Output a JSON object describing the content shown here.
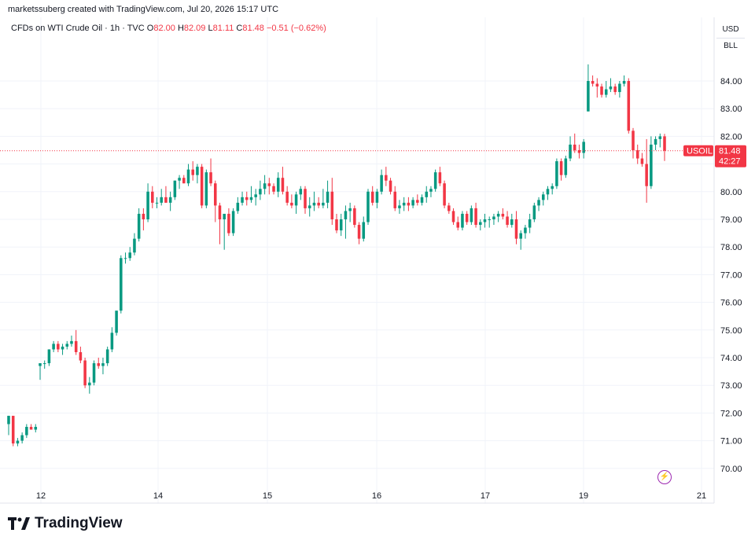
{
  "header": {
    "text": "marketssuberg created with TradingView.com, Jul 20, 2026 15:17 UTC"
  },
  "legend": {
    "symbol": "CFDs on WTI Crude Oil · 1h · TVC",
    "o_label": "O",
    "o_value": "82.00",
    "h_label": "H",
    "h_value": "82.09",
    "l_label": "L",
    "l_value": "81.11",
    "c_label": "C",
    "c_value": "81.48",
    "change": "−0.51 (−0.62%)"
  },
  "units": {
    "currency": "USD",
    "unit": "BLL"
  },
  "price_tag": {
    "symbol": "USOIL",
    "price": "81.48",
    "countdown": "42:27"
  },
  "footer": {
    "logo_text": "TradingView"
  },
  "icons": {
    "logo": "tradingview-logo-icon",
    "bolt": "lightning-icon"
  },
  "colors": {
    "up": "#089981",
    "down": "#f23645",
    "grid": "#f0f3fa",
    "axis": "#e0e3eb"
  },
  "chart_data": {
    "type": "candlestick",
    "interval": "1h",
    "y_ticks": [
      "70.00",
      "71.00",
      "72.00",
      "73.00",
      "74.00",
      "75.00",
      "76.00",
      "77.00",
      "78.00",
      "79.00",
      "80.00",
      "81.00",
      "82.00",
      "83.00",
      "84.00"
    ],
    "x_ticks": [
      "12",
      "14",
      "15",
      "16",
      "17",
      "19",
      "21"
    ],
    "ylim": [
      69.3,
      85.5
    ],
    "last_price": 81.48,
    "candles": [
      [
        71.6,
        71.9,
        71.2,
        71.9
      ],
      [
        71.9,
        71.9,
        70.8,
        70.9
      ],
      [
        70.9,
        71.1,
        70.8,
        71.0
      ],
      [
        71.0,
        71.3,
        70.9,
        71.2
      ],
      [
        71.2,
        71.6,
        71.1,
        71.5
      ],
      [
        71.5,
        71.6,
        71.4,
        71.4
      ],
      [
        71.4,
        71.6,
        71.3,
        71.5
      ],
      [
        73.7,
        73.8,
        73.2,
        73.8
      ],
      [
        73.8,
        73.9,
        73.6,
        73.8
      ],
      [
        73.8,
        74.3,
        73.7,
        74.3
      ],
      [
        74.3,
        74.6,
        74.2,
        74.5
      ],
      [
        74.5,
        74.6,
        74.2,
        74.3
      ],
      [
        74.3,
        74.5,
        74.1,
        74.4
      ],
      [
        74.4,
        74.6,
        74.3,
        74.5
      ],
      [
        74.5,
        74.8,
        74.4,
        74.6
      ],
      [
        74.6,
        75.0,
        74.1,
        74.2
      ],
      [
        74.2,
        74.4,
        73.8,
        73.9
      ],
      [
        73.9,
        74.0,
        72.9,
        73.0
      ],
      [
        73.0,
        73.3,
        72.7,
        73.1
      ],
      [
        73.1,
        73.9,
        73.0,
        73.8
      ],
      [
        73.8,
        74.0,
        73.6,
        73.7
      ],
      [
        73.7,
        74.0,
        73.4,
        73.8
      ],
      [
        73.8,
        74.4,
        73.7,
        74.3
      ],
      [
        74.3,
        75.1,
        74.2,
        74.9
      ],
      [
        74.9,
        75.7,
        74.8,
        75.7
      ],
      [
        75.7,
        77.7,
        75.6,
        77.6
      ],
      [
        77.6,
        77.8,
        77.4,
        77.6
      ],
      [
        77.6,
        78.0,
        77.5,
        77.8
      ],
      [
        77.8,
        78.5,
        77.7,
        78.3
      ],
      [
        78.3,
        79.4,
        78.2,
        79.2
      ],
      [
        79.2,
        79.4,
        78.6,
        79.0
      ],
      [
        79.0,
        80.3,
        78.9,
        80.0
      ],
      [
        80.0,
        80.2,
        79.4,
        79.6
      ],
      [
        79.6,
        79.8,
        79.4,
        79.6
      ],
      [
        79.6,
        80.1,
        79.5,
        79.8
      ],
      [
        79.8,
        80.2,
        79.6,
        79.6
      ],
      [
        79.6,
        80.0,
        79.3,
        79.8
      ],
      [
        79.8,
        80.4,
        79.7,
        80.4
      ],
      [
        80.4,
        80.6,
        80.1,
        80.5
      ],
      [
        80.5,
        80.6,
        80.3,
        80.3
      ],
      [
        80.3,
        81.0,
        80.2,
        80.8
      ],
      [
        80.8,
        81.1,
        80.4,
        80.6
      ],
      [
        80.6,
        81.0,
        80.3,
        80.9
      ],
      [
        80.9,
        81.0,
        79.4,
        79.5
      ],
      [
        79.5,
        80.8,
        79.4,
        80.7
      ],
      [
        80.7,
        81.2,
        80.2,
        80.3
      ],
      [
        80.3,
        80.4,
        78.9,
        79.5
      ],
      [
        79.5,
        79.6,
        78.1,
        79.0
      ],
      [
        79.0,
        79.1,
        77.9,
        79.2
      ],
      [
        79.2,
        79.4,
        78.4,
        78.5
      ],
      [
        78.5,
        79.4,
        78.4,
        79.3
      ],
      [
        79.3,
        79.8,
        79.2,
        79.6
      ],
      [
        79.6,
        80.0,
        79.5,
        79.8
      ],
      [
        79.8,
        80.0,
        79.5,
        79.7
      ],
      [
        79.7,
        80.2,
        79.6,
        79.8
      ],
      [
        79.8,
        80.1,
        79.5,
        79.9
      ],
      [
        79.9,
        80.4,
        79.7,
        80.1
      ],
      [
        80.1,
        80.6,
        79.9,
        80.3
      ],
      [
        80.3,
        80.5,
        79.9,
        80.2
      ],
      [
        80.2,
        80.3,
        79.9,
        80.0
      ],
      [
        80.0,
        80.7,
        79.8,
        80.5
      ],
      [
        80.5,
        80.9,
        79.9,
        80.0
      ],
      [
        80.0,
        80.2,
        79.5,
        79.6
      ],
      [
        79.6,
        79.9,
        79.4,
        79.5
      ],
      [
        79.5,
        80.0,
        79.2,
        79.9
      ],
      [
        79.9,
        80.2,
        79.7,
        80.1
      ],
      [
        80.1,
        80.2,
        79.2,
        79.4
      ],
      [
        79.4,
        79.8,
        79.1,
        79.5
      ],
      [
        79.5,
        80.0,
        79.3,
        79.6
      ],
      [
        79.6,
        79.8,
        79.4,
        79.5
      ],
      [
        79.5,
        80.1,
        79.4,
        79.6
      ],
      [
        79.6,
        80.4,
        79.4,
        80.0
      ],
      [
        80.0,
        80.5,
        78.8,
        79.0
      ],
      [
        79.0,
        79.2,
        78.5,
        78.6
      ],
      [
        78.6,
        79.2,
        78.4,
        79.0
      ],
      [
        79.0,
        79.5,
        78.3,
        79.3
      ],
      [
        79.3,
        79.6,
        78.9,
        79.4
      ],
      [
        79.4,
        79.5,
        78.7,
        78.8
      ],
      [
        78.8,
        78.9,
        78.1,
        78.3
      ],
      [
        78.3,
        79.1,
        78.2,
        78.9
      ],
      [
        78.9,
        80.1,
        78.8,
        80.0
      ],
      [
        80.0,
        80.2,
        79.5,
        79.6
      ],
      [
        79.6,
        80.1,
        79.4,
        80.0
      ],
      [
        80.0,
        80.8,
        79.9,
        80.6
      ],
      [
        80.6,
        80.9,
        80.2,
        80.4
      ],
      [
        80.4,
        80.5,
        79.9,
        80.0
      ],
      [
        80.0,
        80.2,
        79.3,
        79.4
      ],
      [
        79.4,
        79.7,
        79.2,
        79.5
      ],
      [
        79.5,
        79.8,
        79.3,
        79.6
      ],
      [
        79.6,
        79.8,
        79.3,
        79.5
      ],
      [
        79.5,
        79.8,
        79.4,
        79.7
      ],
      [
        79.7,
        79.9,
        79.5,
        79.6
      ],
      [
        79.6,
        79.9,
        79.5,
        79.8
      ],
      [
        79.8,
        80.2,
        79.6,
        80.0
      ],
      [
        80.0,
        80.2,
        79.8,
        80.1
      ],
      [
        80.1,
        80.8,
        80.0,
        80.7
      ],
      [
        80.7,
        80.9,
        80.2,
        80.3
      ],
      [
        80.3,
        80.4,
        79.4,
        79.5
      ],
      [
        79.5,
        79.6,
        79.2,
        79.3
      ],
      [
        79.3,
        79.4,
        78.8,
        78.9
      ],
      [
        78.9,
        79.1,
        78.6,
        78.7
      ],
      [
        78.7,
        79.3,
        78.6,
        79.2
      ],
      [
        79.2,
        79.3,
        78.8,
        78.9
      ],
      [
        78.9,
        79.5,
        78.8,
        79.4
      ],
      [
        79.4,
        79.6,
        78.7,
        78.8
      ],
      [
        78.8,
        79.0,
        78.6,
        78.9
      ],
      [
        78.9,
        79.2,
        78.7,
        79.0
      ],
      [
        79.0,
        79.1,
        78.7,
        79.0
      ],
      [
        79.0,
        79.2,
        78.8,
        79.1
      ],
      [
        79.1,
        79.3,
        78.9,
        79.2
      ],
      [
        79.2,
        79.4,
        79.0,
        79.1
      ],
      [
        79.1,
        79.3,
        78.7,
        78.8
      ],
      [
        78.8,
        79.2,
        78.7,
        79.0
      ],
      [
        79.0,
        79.3,
        78.1,
        78.3
      ],
      [
        78.3,
        78.6,
        77.9,
        78.5
      ],
      [
        78.5,
        78.8,
        78.3,
        78.7
      ],
      [
        78.7,
        79.2,
        78.5,
        79.0
      ],
      [
        79.0,
        79.6,
        78.9,
        79.5
      ],
      [
        79.5,
        79.8,
        79.3,
        79.7
      ],
      [
        79.7,
        80.0,
        79.5,
        79.9
      ],
      [
        79.9,
        80.2,
        79.7,
        80.1
      ],
      [
        80.1,
        80.3,
        79.9,
        80.2
      ],
      [
        80.2,
        81.2,
        80.1,
        81.1
      ],
      [
        81.1,
        81.2,
        80.4,
        80.6
      ],
      [
        80.6,
        81.3,
        80.5,
        81.2
      ],
      [
        81.2,
        82.0,
        81.1,
        81.7
      ],
      [
        81.7,
        82.1,
        81.4,
        81.5
      ],
      [
        81.5,
        81.7,
        81.2,
        81.4
      ],
      [
        81.4,
        81.9,
        81.2,
        81.8
      ],
      [
        82.9,
        84.6,
        82.9,
        84.0
      ],
      [
        84.0,
        84.2,
        83.8,
        83.9
      ],
      [
        83.9,
        84.1,
        83.4,
        83.8
      ],
      [
        83.8,
        83.9,
        83.4,
        83.5
      ],
      [
        83.5,
        84.0,
        83.4,
        83.7
      ],
      [
        83.7,
        84.1,
        83.6,
        83.8
      ],
      [
        83.8,
        83.9,
        83.5,
        83.6
      ],
      [
        83.6,
        84.0,
        83.4,
        83.9
      ],
      [
        83.9,
        84.2,
        83.8,
        84.0
      ],
      [
        84.0,
        84.1,
        82.1,
        82.2
      ],
      [
        82.2,
        82.3,
        81.2,
        81.5
      ],
      [
        81.5,
        81.7,
        81.0,
        81.2
      ],
      [
        81.2,
        81.4,
        80.9,
        81.0
      ],
      [
        81.0,
        81.9,
        79.6,
        80.2
      ],
      [
        80.2,
        82.0,
        80.1,
        81.7
      ],
      [
        81.7,
        82.0,
        81.5,
        81.9
      ],
      [
        81.9,
        82.1,
        81.6,
        82.0
      ],
      [
        82.0,
        82.09,
        81.11,
        81.48
      ]
    ]
  }
}
